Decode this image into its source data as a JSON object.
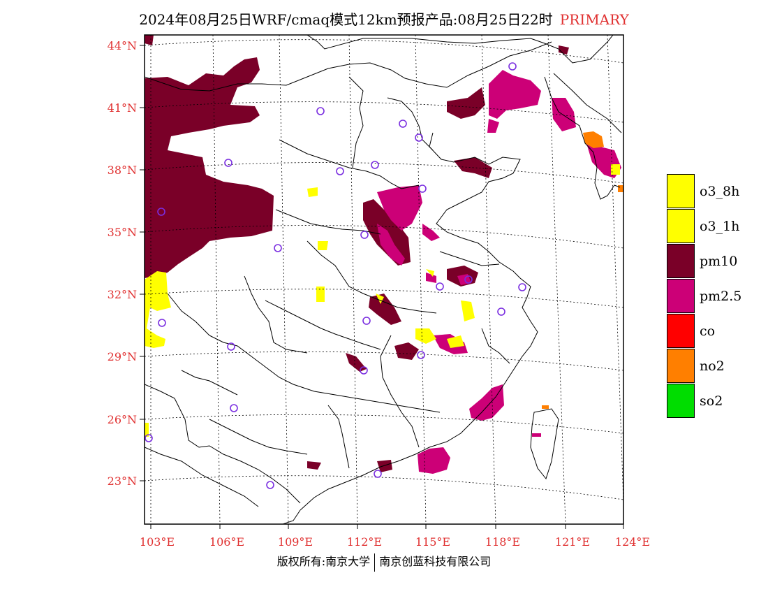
{
  "title": {
    "main": "2024年08月25日WRF/cmaq模式12km预报产品:08月25日22时",
    "tag": "PRIMARY"
  },
  "map": {
    "lat_labels": [
      "44°N",
      "41°N",
      "38°N",
      "35°N",
      "32°N",
      "29°N",
      "26°N",
      "23°N"
    ],
    "lon_labels": [
      "103°E",
      "106°E",
      "109°E",
      "112°E",
      "115°E",
      "118°E",
      "121°E",
      "124°E"
    ],
    "colors": {
      "o3_8h": "#ffff00",
      "o3_1h": "#ffff00",
      "pm10": "#7a0028",
      "pm25": "#cc0077",
      "co": "#ff0000",
      "no2": "#ff7f00",
      "so2": "#00dd00",
      "station": "#7a2ee0",
      "label": "#e03030"
    }
  },
  "legend": {
    "items": [
      {
        "label": "o3_8h",
        "color": "#ffff00"
      },
      {
        "label": "o3_1h",
        "color": "#ffff00"
      },
      {
        "label": "pm10",
        "color": "#7a0028"
      },
      {
        "label": "pm2.5",
        "color": "#cc0077"
      },
      {
        "label": "co",
        "color": "#ff0000"
      },
      {
        "label": "no2",
        "color": "#ff7f00"
      },
      {
        "label": "so2",
        "color": "#00dd00"
      }
    ]
  },
  "credit": {
    "left": "版权所有:南京大学",
    "right": "南京创蓝科技有限公司"
  }
}
